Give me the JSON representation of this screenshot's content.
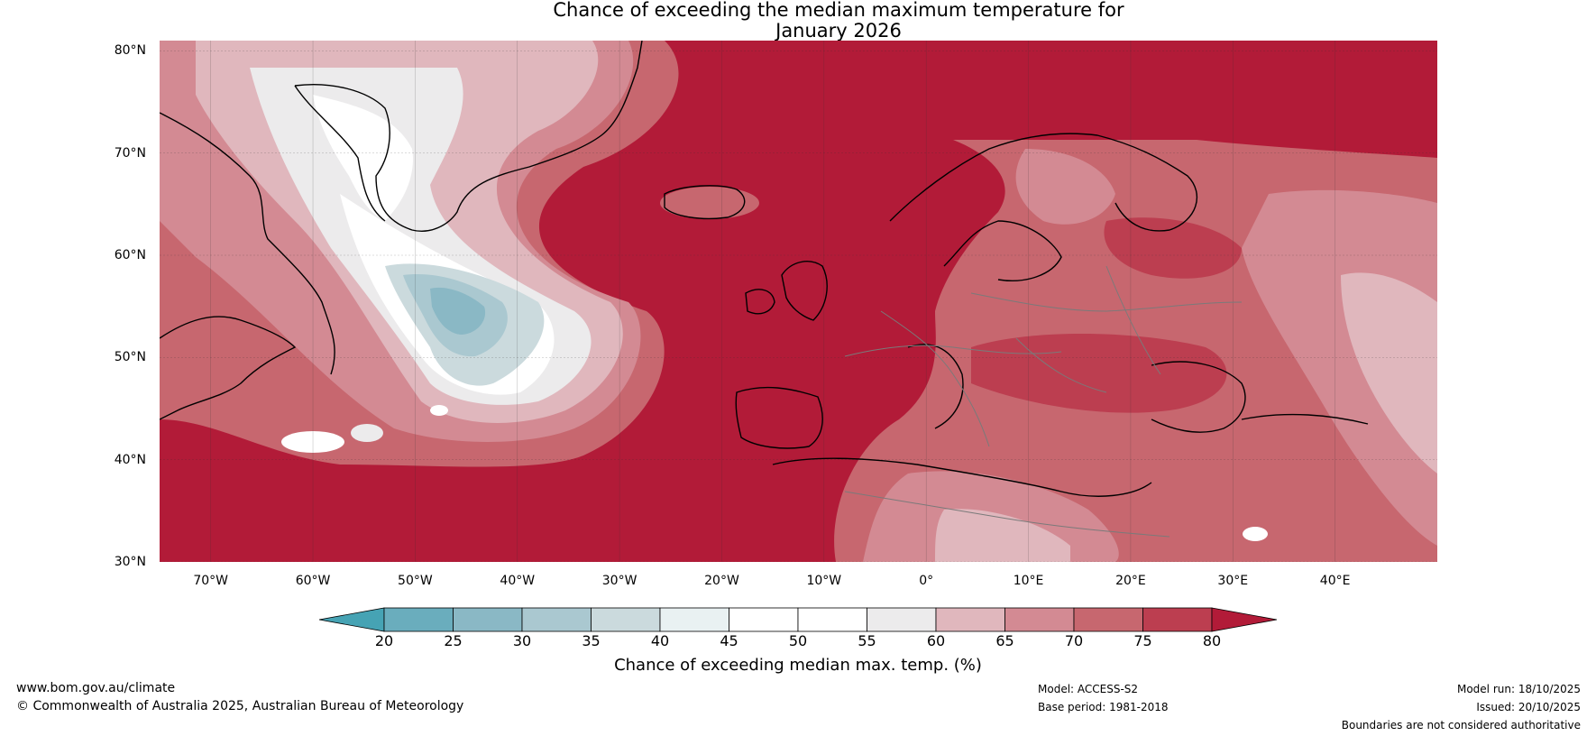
{
  "title_line1": "Chance of exceeding the median maximum temperature for",
  "title_line2": "January 2026",
  "map": {
    "lat_labels": [
      "80°N",
      "70°N",
      "60°N",
      "50°N",
      "40°N",
      "30°N"
    ],
    "lon_labels": [
      "70°W",
      "60°W",
      "50°W",
      "40°W",
      "30°W",
      "20°W",
      "10°W",
      "0°",
      "10°E",
      "20°E",
      "30°E",
      "40°E"
    ],
    "lat_values": [
      80,
      70,
      60,
      50,
      40,
      30
    ],
    "lon_values": [
      -70,
      -60,
      -50,
      -40,
      -30,
      -20,
      -10,
      0,
      10,
      20,
      30,
      40
    ],
    "lat_range": [
      30,
      81
    ],
    "lon_range": [
      -75,
      50
    ]
  },
  "colorbar": {
    "ticks": [
      "20",
      "25",
      "30",
      "35",
      "40",
      "45",
      "50",
      "55",
      "60",
      "65",
      "70",
      "75",
      "80"
    ],
    "colors": [
      "#46a3b4",
      "#6aadbd",
      "#8ab8c5",
      "#aac8d0",
      "#cbdadd",
      "#e9f1f2",
      "#ffffff",
      "#ffffff",
      "#ecebec",
      "#e0b7bd",
      "#d38a93",
      "#c7676f",
      "#bc3e50",
      "#b21b38"
    ],
    "label": "Chance of exceeding median max. temp. (%)"
  },
  "footer": {
    "website": "www.bom.gov.au/climate",
    "copyright": "© Commonwealth of Australia 2025, Australian Bureau of Meteorology",
    "model": "Model: ACCESS-S2",
    "base_period": "Base period: 1981-2018",
    "model_run": "Model run: 18/10/2025",
    "issued": "Issued: 20/10/2025",
    "disclaimer": "Boundaries are not considered authoritative"
  }
}
